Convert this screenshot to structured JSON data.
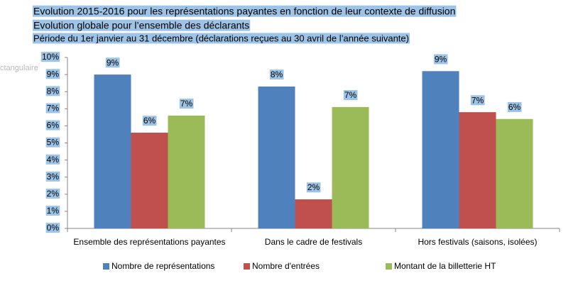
{
  "chart_data": {
    "type": "bar",
    "title": "Evolution 2015-2016 pour les représentations payantes en fonction de leur contexte de diffusion",
    "subtitle": "Evolution globale pour l’ensemble des déclarants",
    "note": "Période du 1er janvier au 31 décembre (déclarations reçues au 30 avril de l’année suivante)",
    "overlay_text": "ctangulaire",
    "categories": [
      "Ensemble des représentations payantes",
      "Dans le cadre de festivals",
      "Hors festivals (saisons, isolées)"
    ],
    "series": [
      {
        "name": "Nombre de représentations",
        "color": "#4f81bd",
        "values": [
          9.0,
          8.3,
          9.2
        ],
        "value_labels": [
          "9%",
          "8%",
          "9%"
        ]
      },
      {
        "name": "Nombre d'entrées",
        "color": "#c0504d",
        "values": [
          5.6,
          1.7,
          6.8
        ],
        "value_labels": [
          "6%",
          "2%",
          "7%"
        ]
      },
      {
        "name": "Montant de la billetterie HT",
        "color": "#9bbb59",
        "values": [
          6.6,
          7.1,
          6.4
        ],
        "value_labels": [
          "7%",
          "7%",
          "6%"
        ]
      }
    ],
    "ylim": [
      0,
      10
    ],
    "yticks": [
      {
        "value": 0,
        "label": "0%"
      },
      {
        "value": 1,
        "label": "1%"
      },
      {
        "value": 2,
        "label": "2%"
      },
      {
        "value": 3,
        "label": "3%"
      },
      {
        "value": 4,
        "label": "4%"
      },
      {
        "value": 5,
        "label": "5%"
      },
      {
        "value": 6,
        "label": "6%"
      },
      {
        "value": 7,
        "label": "7%"
      },
      {
        "value": 8,
        "label": "8%"
      },
      {
        "value": 9,
        "label": "9%"
      },
      {
        "value": 10,
        "label": "10%"
      }
    ],
    "grid": false,
    "legend": "bottom",
    "highlight_color": "#9dc3e6"
  }
}
